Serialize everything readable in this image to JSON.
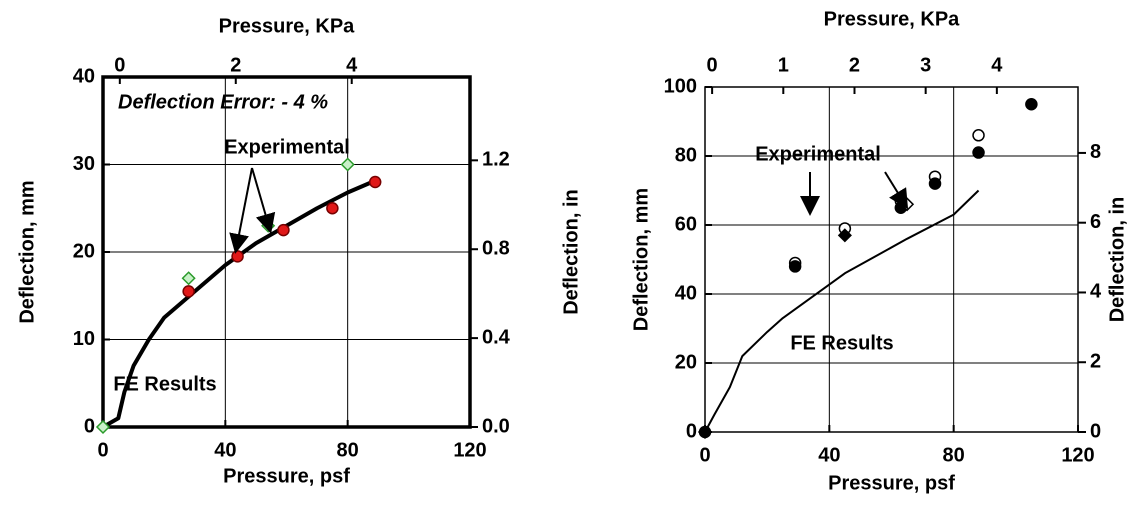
{
  "chart_data": [
    {
      "type": "line",
      "annotations": [
        "Deflection Error: - 4 %",
        "Experimental",
        "FE Results"
      ],
      "x_label": "Pressure, psf",
      "x2_label": "Pressure, KPa",
      "y_label": "Deflection, mm",
      "y2_label": "Deflection, in",
      "xlim": [
        0,
        120
      ],
      "xticks": [
        0,
        40,
        80,
        120
      ],
      "x2lim": [
        -0.29,
        6.04
      ],
      "x2ticks": [
        0,
        2,
        4
      ],
      "ylim": [
        0,
        40
      ],
      "yticks": [
        0,
        10,
        20,
        30,
        40
      ],
      "y2lim": [
        0,
        1.575
      ],
      "y2ticks": [
        {
          "value": 0,
          "label": "0.0"
        },
        0.4,
        0.8,
        1.2
      ],
      "grid": true,
      "series": [
        {
          "style": "line",
          "color": "#000000",
          "line_width": 4,
          "x": [
            0,
            5,
            7,
            10,
            15,
            20,
            30,
            40,
            50,
            60,
            70,
            80,
            88
          ],
          "values": [
            0,
            1,
            4,
            7,
            10,
            12.5,
            15.5,
            18.5,
            21,
            23,
            25,
            26.8,
            28
          ]
        },
        {
          "style": "markers",
          "marker": "circle",
          "filled": true,
          "color": "#e01818",
          "x": [
            28,
            44,
            59,
            75,
            89
          ],
          "values": [
            15.5,
            19.5,
            22.5,
            25,
            28
          ]
        },
        {
          "style": "markers",
          "marker": "diamond",
          "filled": false,
          "color": "#2a9a2a",
          "x": [
            0,
            28,
            54,
            80
          ],
          "values": [
            0,
            17,
            23,
            30
          ]
        }
      ]
    },
    {
      "type": "line",
      "annotations": [
        "Experimental",
        "FE Results"
      ],
      "x_label": "Pressure, psf",
      "x2_label": "Pressure, KPa",
      "y_label": "Deflection, mm",
      "y2_label": "Deflection, in",
      "xlim": [
        0,
        120
      ],
      "xticks": [
        0,
        40,
        80,
        120
      ],
      "x2lim": [
        -0.1,
        5.14
      ],
      "x2ticks": [
        0,
        1,
        2,
        3,
        4
      ],
      "ylim": [
        0,
        100
      ],
      "yticks": [
        0,
        20,
        40,
        60,
        80,
        100
      ],
      "y2lim": [
        0,
        9.89
      ],
      "y2ticks": [
        0,
        2,
        4,
        6,
        8
      ],
      "grid": true,
      "series": [
        {
          "style": "line",
          "color": "#000000",
          "line_width": 2,
          "x": [
            0,
            3,
            8,
            12,
            20,
            25,
            45,
            65,
            80,
            88
          ],
          "values": [
            0,
            5,
            13,
            22,
            29,
            33,
            46,
            56,
            63,
            70
          ]
        },
        {
          "style": "markers",
          "marker": "circle",
          "filled": false,
          "color": "#000000",
          "x": [
            29,
            45,
            63,
            74,
            88
          ],
          "values": [
            49,
            59,
            67,
            74,
            86
          ]
        },
        {
          "style": "markers",
          "marker": "circle",
          "filled": true,
          "color": "#000000",
          "x": [
            0,
            29,
            63,
            74,
            88,
            105
          ],
          "values": [
            0,
            48,
            65,
            72,
            81,
            95
          ]
        },
        {
          "style": "markers",
          "marker": "diamond",
          "filled": true,
          "color": "#000000",
          "x": [
            0,
            45
          ],
          "values": [
            0,
            57
          ]
        },
        {
          "style": "markers",
          "marker": "diamond",
          "filled": false,
          "color": "#000000",
          "x": [
            65
          ],
          "values": [
            66
          ]
        }
      ]
    }
  ]
}
